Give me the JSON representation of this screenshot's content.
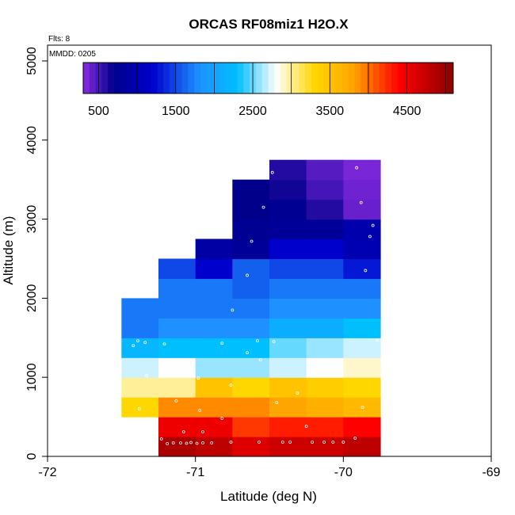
{
  "chart_data": {
    "type": "heatmap",
    "title": "ORCAS RF08miz1 H2O.X",
    "flts_label": "Flts: 8",
    "mmdd_label": "MMDD: 0205",
    "xlabel": "Latitude (deg N)",
    "ylabel": "Altitude (m)",
    "xlim": [
      -72,
      -69
    ],
    "ylim": [
      0,
      5200
    ],
    "xticks": [
      -72,
      -71,
      -70,
      -69
    ],
    "yticks": [
      0,
      1000,
      2000,
      3000,
      4000,
      5000
    ],
    "colorbar": {
      "range": [
        300,
        5100
      ],
      "tick_values": [
        500,
        1500,
        2500,
        3500,
        4500
      ],
      "tick_labels": [
        "500",
        "1500",
        "2500",
        "3500",
        "4500"
      ],
      "divider_values": [
        1000,
        2000,
        3000,
        4000,
        5000
      ],
      "stops": [
        {
          "v": 300,
          "c": "#8a2be2"
        },
        {
          "v": 700,
          "c": "#00008b"
        },
        {
          "v": 1200,
          "c": "#0000cd"
        },
        {
          "v": 1800,
          "c": "#1e90ff"
        },
        {
          "v": 2300,
          "c": "#00bfff"
        },
        {
          "v": 2800,
          "c": "#ffffff"
        },
        {
          "v": 3300,
          "c": "#ffd700"
        },
        {
          "v": 3800,
          "c": "#ffa500"
        },
        {
          "v": 4400,
          "c": "#ff0000"
        },
        {
          "v": 5100,
          "c": "#8b0000"
        }
      ]
    },
    "cell_width_deg": 0.25,
    "cell_height_m": 250,
    "columns": [
      {
        "x": -71.5,
        "y0": 500,
        "values": [
          3300,
          3000,
          2700,
          2200,
          1700,
          1700
        ]
      },
      {
        "x": -71.25,
        "y0": 0,
        "values": [
          4900,
          4500,
          3900,
          3000,
          2800,
          2300,
          1800,
          1700,
          1700,
          1500
        ]
      },
      {
        "x": -71.0,
        "y0": 0,
        "values": [
          4800,
          4500,
          3900,
          3500,
          2600,
          2300,
          1800,
          1700,
          1700,
          1200,
          900
        ]
      },
      {
        "x": -70.75,
        "y0": 0,
        "values": [
          4600,
          4200,
          3900,
          3300,
          2600,
          2300,
          1800,
          1700,
          1600,
          1600,
          800,
          750,
          700,
          700
        ]
      },
      {
        "x": -70.5,
        "y0": 0,
        "values": [
          4700,
          4300,
          3800,
          3500,
          2700,
          2500,
          2100,
          1800,
          1700,
          1500,
          1200,
          800,
          750,
          650,
          600
        ]
      },
      {
        "x": -70.25,
        "y0": 0,
        "values": [
          4700,
          4300,
          3700,
          3400,
          2800,
          2600,
          2100,
          1800,
          1700,
          1500,
          1200,
          800,
          600,
          500,
          450
        ]
      },
      {
        "x": -70.0,
        "y0": 0,
        "values": [
          4800,
          4400,
          3600,
          3300,
          2900,
          2700,
          2300,
          1800,
          1700,
          1300,
          1000,
          950,
          400,
          380,
          350
        ]
      }
    ],
    "points": [
      [
        -71.23,
        220
      ],
      [
        -71.19,
        160
      ],
      [
        -71.15,
        170
      ],
      [
        -71.1,
        170
      ],
      [
        -71.06,
        165
      ],
      [
        -71.03,
        175
      ],
      [
        -70.99,
        165
      ],
      [
        -70.95,
        170
      ],
      [
        -71.08,
        310
      ],
      [
        -70.95,
        310
      ],
      [
        -70.89,
        170
      ],
      [
        -70.76,
        180
      ],
      [
        -70.82,
        480
      ],
      [
        -70.57,
        180
      ],
      [
        -70.41,
        180
      ],
      [
        -70.36,
        180
      ],
      [
        -70.25,
        380
      ],
      [
        -70.21,
        180
      ],
      [
        -70.13,
        180
      ],
      [
        -70.07,
        180
      ],
      [
        -70.0,
        180
      ],
      [
        -69.92,
        230
      ],
      [
        -69.87,
        620
      ],
      [
        -70.45,
        680
      ],
      [
        -70.31,
        800
      ],
      [
        -70.76,
        900
      ],
      [
        -70.97,
        580
      ],
      [
        -71.13,
        700
      ],
      [
        -71.38,
        600
      ],
      [
        -71.33,
        1020
      ],
      [
        -71.22,
        1130
      ],
      [
        -70.98,
        990
      ],
      [
        -70.56,
        1220
      ],
      [
        -70.65,
        1310
      ],
      [
        -70.47,
        1450
      ],
      [
        -70.58,
        1460
      ],
      [
        -70.82,
        1430
      ],
      [
        -71.21,
        1420
      ],
      [
        -71.34,
        1440
      ],
      [
        -71.42,
        1400
      ],
      [
        -71.39,
        1460
      ],
      [
        -70.75,
        1850
      ],
      [
        -70.65,
        2290
      ],
      [
        -69.85,
        2350
      ],
      [
        -69.8,
        2920
      ],
      [
        -69.82,
        2780
      ],
      [
        -69.88,
        3210
      ],
      [
        -69.91,
        3650
      ],
      [
        -70.48,
        3590
      ],
      [
        -70.54,
        3150
      ],
      [
        -70.62,
        2720
      ],
      [
        -69.77,
        1470
      ]
    ]
  }
}
